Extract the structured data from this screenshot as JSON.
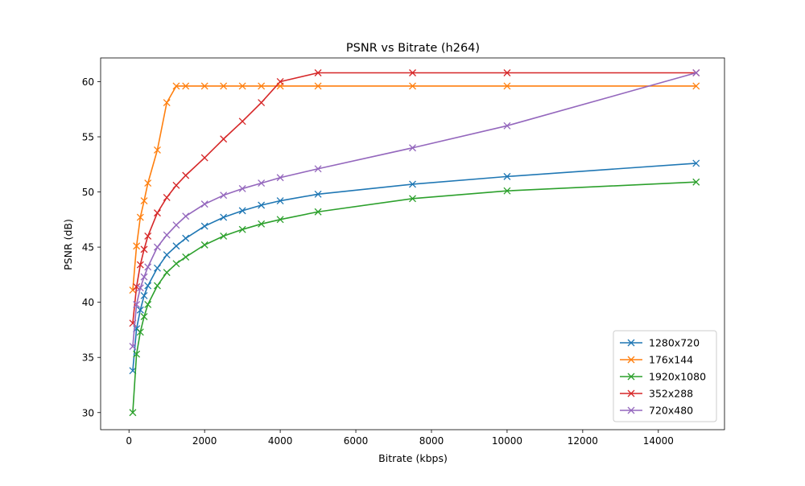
{
  "chart_data": {
    "type": "line",
    "title": "PSNR vs Bitrate (h264)",
    "xlabel": "Bitrate (kbps)",
    "ylabel": "PSNR (dB)",
    "xlim": [
      -750,
      15750
    ],
    "ylim": [
      28.45,
      62.15
    ],
    "xticks": [
      0,
      2000,
      4000,
      6000,
      8000,
      10000,
      12000,
      14000
    ],
    "yticks": [
      30,
      35,
      40,
      45,
      50,
      55,
      60
    ],
    "grid": false,
    "legend_position": "bottom-right",
    "marker": "x",
    "x": [
      100,
      200,
      300,
      400,
      500,
      750,
      1000,
      1250,
      1500,
      2000,
      2500,
      3000,
      3500,
      4000,
      5000,
      7500,
      10000,
      15000
    ],
    "series": [
      {
        "name": "1280x720",
        "color": "#1f77b4",
        "values": [
          33.8,
          37.6,
          39.3,
          40.6,
          41.5,
          43.1,
          44.3,
          45.1,
          45.8,
          46.9,
          47.7,
          48.3,
          48.8,
          49.2,
          49.8,
          50.7,
          51.4,
          52.6
        ]
      },
      {
        "name": "176x144",
        "color": "#ff7f0e",
        "values": [
          41.1,
          45.1,
          47.7,
          49.2,
          50.8,
          53.8,
          58.1,
          59.6,
          59.6,
          59.6,
          59.6,
          59.6,
          59.6,
          59.6,
          59.6,
          59.6,
          59.6,
          59.6
        ]
      },
      {
        "name": "1920x1080",
        "color": "#2ca02c",
        "values": [
          30.0,
          35.3,
          37.3,
          38.7,
          39.8,
          41.5,
          42.7,
          43.5,
          44.1,
          45.2,
          46.0,
          46.6,
          47.1,
          47.5,
          48.2,
          49.4,
          50.1,
          50.9
        ]
      },
      {
        "name": "352x288",
        "color": "#d62728",
        "values": [
          38.1,
          41.4,
          43.4,
          44.8,
          46.0,
          48.1,
          49.5,
          50.6,
          51.5,
          53.1,
          54.8,
          56.4,
          58.1,
          60.0,
          60.8,
          60.8,
          60.8,
          60.8
        ]
      },
      {
        "name": "720x480",
        "color": "#9467bd",
        "values": [
          36.0,
          39.8,
          41.3,
          42.3,
          43.2,
          45.0,
          46.1,
          47.0,
          47.8,
          48.9,
          49.7,
          50.3,
          50.8,
          51.3,
          52.1,
          54.0,
          56.0,
          60.8
        ]
      }
    ]
  }
}
